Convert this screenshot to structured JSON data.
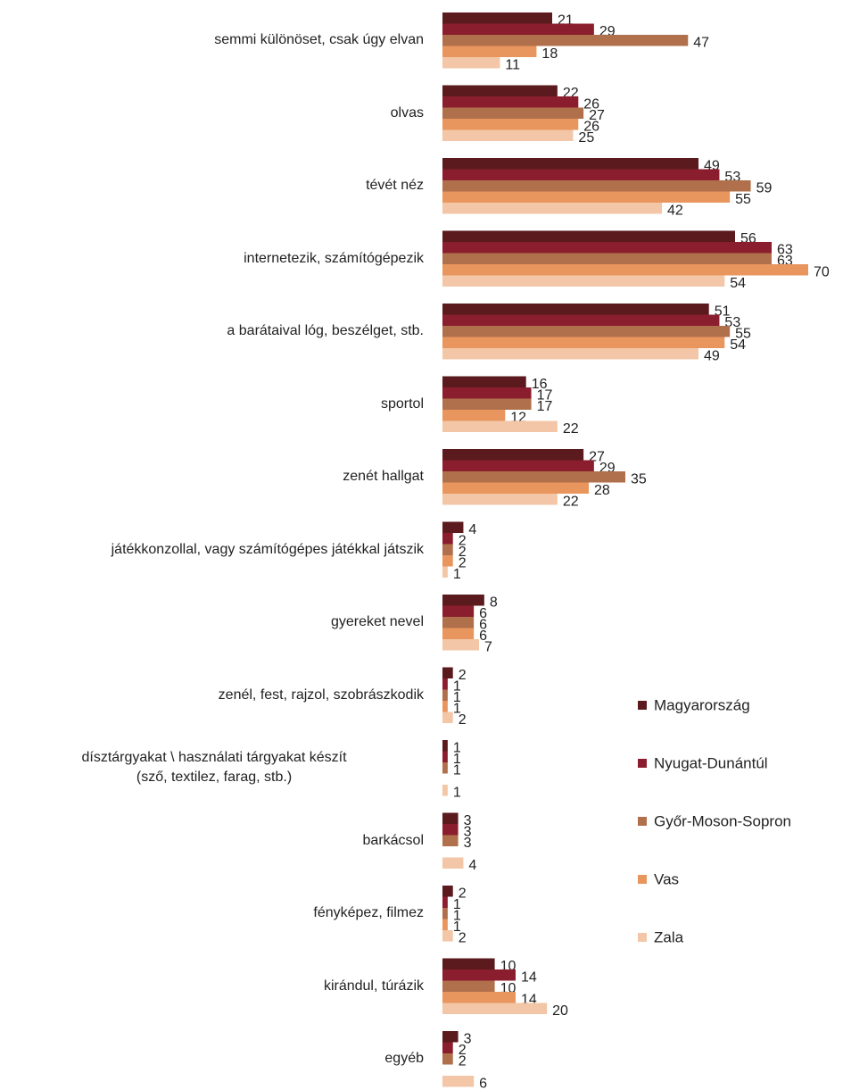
{
  "chart_data": {
    "type": "bar",
    "orientation": "horizontal",
    "categories": [
      "semmi különöset, csak úgy elvan",
      "olvas",
      "tévét néz",
      "internetezik, számítógépezik",
      "a barátaival lóg, beszélget, stb.",
      "sportol",
      "zenét hallgat",
      "játékkonzollal, vagy számítógépes játékkal játszik",
      "gyereket nevel",
      "zenél, fest, rajzol, szobrászkodik",
      "dísztárgyakat \\ használati tárgyakat készít\n(sző, textilez, farag, stb.)",
      "barkácsol",
      "fényképez, filmez",
      "kirándul, túrázik",
      "egyéb"
    ],
    "series": [
      {
        "name": "Magyarország",
        "color": "#5a1a1e",
        "values": [
          21,
          22,
          49,
          56,
          51,
          16,
          27,
          4,
          8,
          2,
          1,
          3,
          2,
          10,
          3
        ]
      },
      {
        "name": "Nyugat-Dunántúl",
        "color": "#8b1e2e",
        "values": [
          29,
          26,
          53,
          63,
          53,
          17,
          29,
          2,
          6,
          1,
          1,
          3,
          1,
          14,
          2
        ]
      },
      {
        "name": "Győr-Moson-Sopron",
        "color": "#b0704c",
        "values": [
          47,
          27,
          59,
          63,
          55,
          17,
          35,
          2,
          6,
          1,
          1,
          3,
          1,
          10,
          2
        ]
      },
      {
        "name": "Vas",
        "color": "#e8955e",
        "values": [
          18,
          26,
          55,
          70,
          54,
          12,
          28,
          2,
          6,
          1,
          null,
          null,
          1,
          14,
          null
        ]
      },
      {
        "name": "Zala",
        "color": "#f2c6a6",
        "values": [
          11,
          25,
          42,
          54,
          49,
          22,
          22,
          1,
          7,
          2,
          1,
          4,
          2,
          20,
          6
        ]
      }
    ],
    "legend": "right"
  }
}
